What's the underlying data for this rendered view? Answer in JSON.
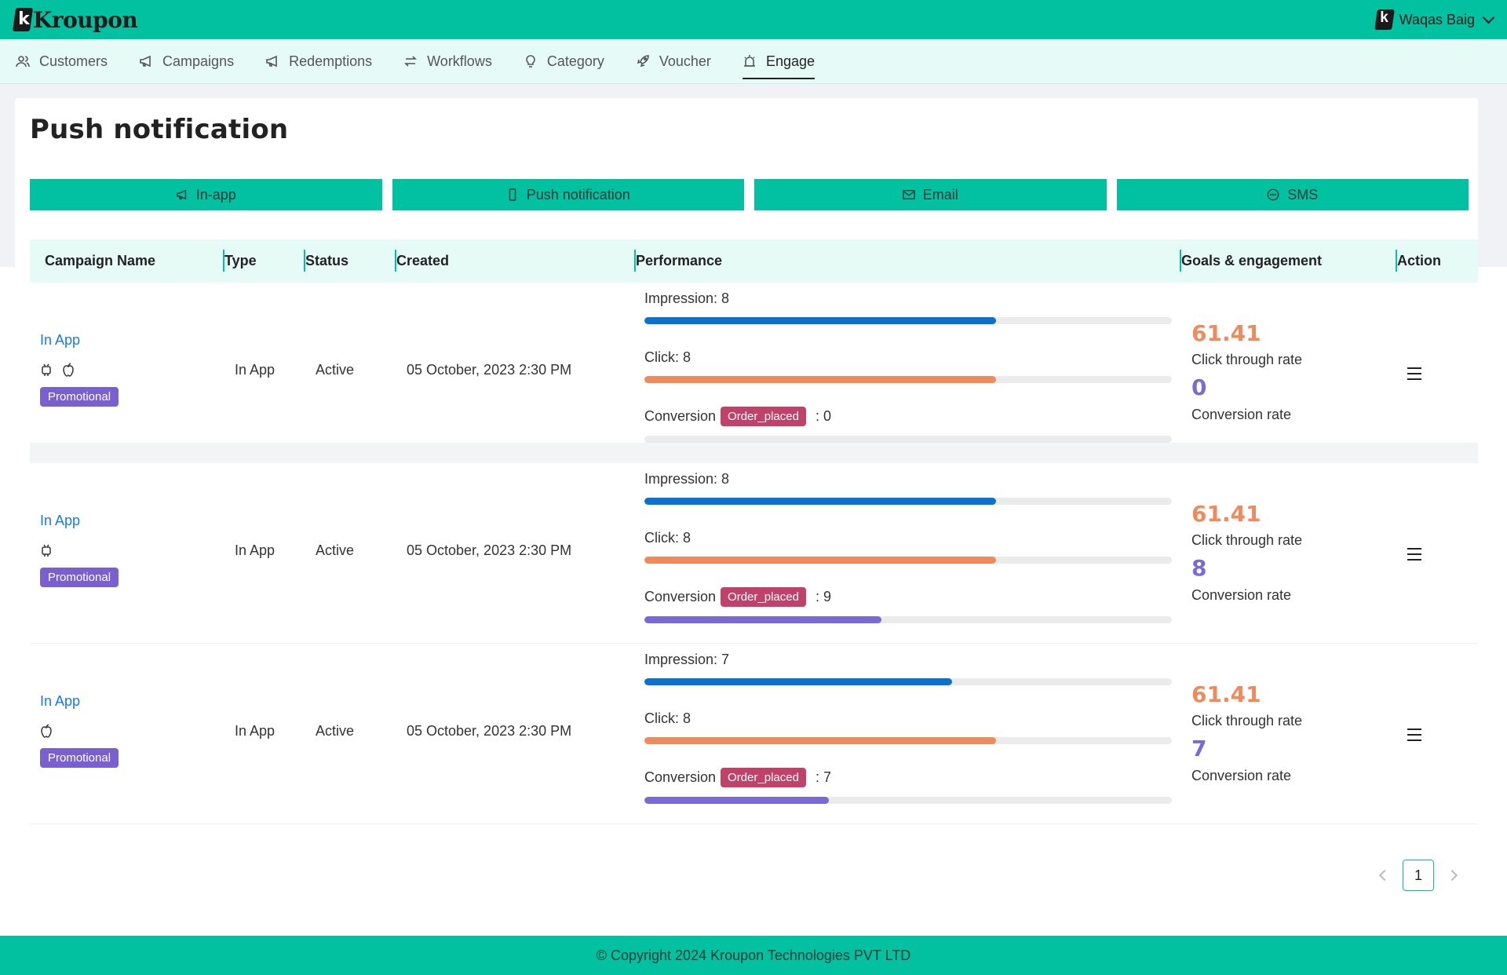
{
  "app": {
    "logo_text": "Kroupon",
    "user_name": "Waqas Baig"
  },
  "nav": {
    "items": [
      {
        "label": "Customers",
        "icon": "customers-icon"
      },
      {
        "label": "Campaigns",
        "icon": "megaphone-icon"
      },
      {
        "label": "Redemptions",
        "icon": "megaphone-icon"
      },
      {
        "label": "Workflows",
        "icon": "workflow-icon"
      },
      {
        "label": "Category",
        "icon": "bulb-icon"
      },
      {
        "label": "Voucher",
        "icon": "rocket-icon"
      },
      {
        "label": "Engage",
        "icon": "alarm-icon",
        "active": true
      }
    ]
  },
  "page": {
    "title": "Push notification"
  },
  "channels": [
    {
      "label": "In-app",
      "icon": "megaphone-icon"
    },
    {
      "label": "Push notification",
      "icon": "phone-icon"
    },
    {
      "label": "Email",
      "icon": "mail-icon"
    },
    {
      "label": "SMS",
      "icon": "chat-icon"
    }
  ],
  "table": {
    "headers": [
      "Campaign Name",
      "Type",
      "Status",
      "Created",
      "Performance",
      "Goals & engagement",
      "Action"
    ],
    "rows": [
      {
        "name": "In App",
        "platforms": [
          "android",
          "apple"
        ],
        "tag": "Promotional",
        "type": "In App",
        "status": "Active",
        "created": "05 October, 2023 2:30 PM",
        "impression_label": "Impression: 8",
        "impression_fraction": 0.667,
        "click_label": "Click: 8",
        "click_fraction": 0.667,
        "conversion_label": "Conversion",
        "conversion_tag": "Order_placed",
        "conversion_value": ": 0",
        "conversion_fraction": 0,
        "ctr": "61.41",
        "ctr_label": "Click through rate",
        "conv_rate": "0",
        "conv_rate_label": "Conversion rate"
      },
      {
        "name": "In App",
        "platforms": [
          "android"
        ],
        "tag": "Promotional",
        "type": "In App",
        "status": "Active",
        "created": "05 October, 2023 2:30 PM",
        "impression_label": "Impression: 8",
        "impression_fraction": 0.667,
        "click_label": "Click: 8",
        "click_fraction": 0.667,
        "conversion_label": "Conversion",
        "conversion_tag": "Order_placed",
        "conversion_value": ": 9",
        "conversion_fraction": 0.45,
        "ctr": "61.41",
        "ctr_label": "Click through rate",
        "conv_rate": "8",
        "conv_rate_label": "Conversion rate"
      },
      {
        "name": "In App",
        "platforms": [
          "apple"
        ],
        "tag": "Promotional",
        "type": "In App",
        "status": "Active",
        "created": "05 October, 2023 2:30 PM",
        "impression_label": "Impression: 7",
        "impression_fraction": 0.583,
        "click_label": "Click: 8",
        "click_fraction": 0.667,
        "conversion_label": "Conversion",
        "conversion_tag": "Order_placed",
        "conversion_value": ": 7",
        "conversion_fraction": 0.35,
        "ctr": "61.41",
        "ctr_label": "Click through rate",
        "conv_rate": "7",
        "conv_rate_label": "Conversion rate"
      }
    ]
  },
  "pagination": {
    "current": "1"
  },
  "colors": {
    "brand": "#02c1a1",
    "impression": "#0b72cc",
    "click": "#f08a5d",
    "conversion": "#7b6ad6",
    "ctr": "#f08a5d",
    "conv_rate": "#7b6ad6"
  },
  "footer": {
    "text": "© Copyright 2024 Kroupon Technologies PVT LTD"
  }
}
